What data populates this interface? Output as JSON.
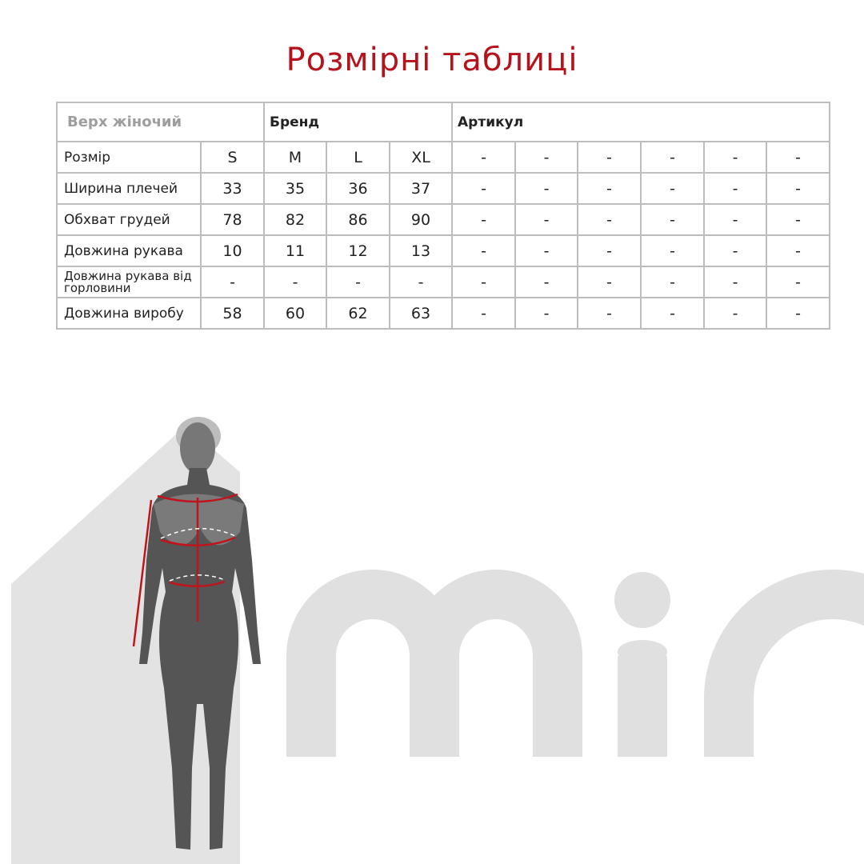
{
  "title": "Розмірні таблиці",
  "colors": {
    "title": "#b5121b",
    "measure_lines": "#c0141c",
    "silhouette": "#555555",
    "logo": "#e0e0e0"
  },
  "logo_text": "min",
  "table": {
    "category": "Верх жіночий",
    "brand_label": "Бренд",
    "article_label": "Артикул",
    "rows": [
      {
        "label": "Розмір",
        "values": [
          "S",
          "M",
          "L",
          "XL"
        ],
        "article": [
          "-",
          "-",
          "-",
          "-",
          "-",
          "-"
        ]
      },
      {
        "label": "Ширина плечей",
        "values": [
          "33",
          "35",
          "36",
          "37"
        ],
        "article": [
          "-",
          "-",
          "-",
          "-",
          "-",
          "-"
        ]
      },
      {
        "label": "Обхват грудей",
        "values": [
          "78",
          "82",
          "86",
          "90"
        ],
        "article": [
          "-",
          "-",
          "-",
          "-",
          "-",
          "-"
        ]
      },
      {
        "label": "Довжина рукава",
        "values": [
          "10",
          "11",
          "12",
          "13"
        ],
        "article": [
          "-",
          "-",
          "-",
          "-",
          "-",
          "-"
        ]
      },
      {
        "label": "Довжина рукава від горловини",
        "values": [
          "-",
          "-",
          "-",
          "-"
        ],
        "article": [
          "-",
          "-",
          "-",
          "-",
          "-",
          "-"
        ]
      },
      {
        "label": "Довжина виробу",
        "values": [
          "58",
          "60",
          "62",
          "63"
        ],
        "article": [
          "-",
          "-",
          "-",
          "-",
          "-",
          "-"
        ]
      }
    ]
  }
}
